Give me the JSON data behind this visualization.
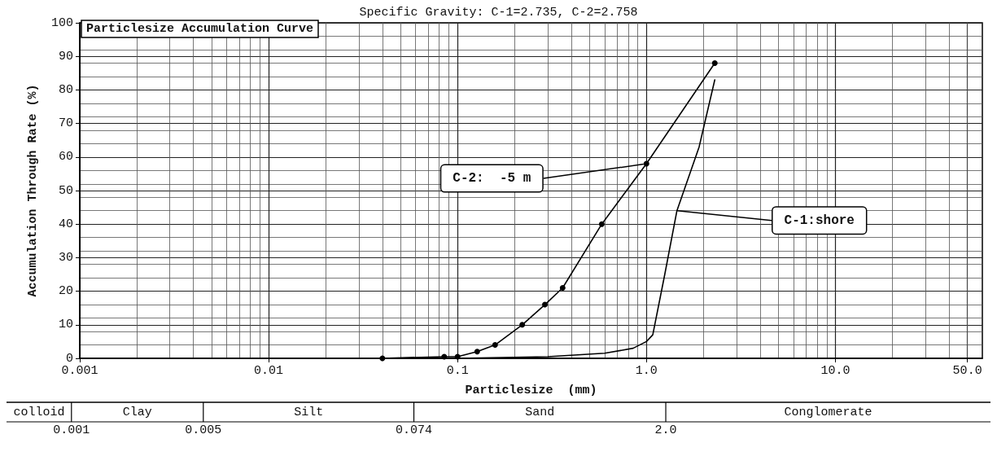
{
  "chart_data": {
    "type": "line",
    "title": "Particlesize Accumulation Curve",
    "subtitle": "Specific Gravity: C-1=2.735, C-2=2.758",
    "xlabel": "Particlesize  (mm)",
    "ylabel": "Accumulation Through Rate (%)",
    "log": "x",
    "xlim": [
      0.001,
      60
    ],
    "xticks": [
      {
        "value": 0.001,
        "label": "0.001"
      },
      {
        "value": 0.01,
        "label": "0.01"
      },
      {
        "value": 0.1,
        "label": "0.1"
      },
      {
        "value": 1,
        "label": "1.0"
      },
      {
        "value": 10,
        "label": "10.0"
      },
      {
        "value": 50,
        "label": "50.0"
      }
    ],
    "ylim": [
      0,
      100
    ],
    "yticks": [
      0,
      10,
      20,
      30,
      40,
      50,
      60,
      70,
      80,
      90,
      100
    ],
    "grid": true,
    "legend": false,
    "line_style": "solid",
    "series": [
      {
        "name": "C-2:  -5 m",
        "color": "#000000",
        "marker": "circle",
        "x": [
          0.04,
          0.085,
          0.1,
          0.127,
          0.158,
          0.22,
          0.29,
          0.36,
          0.58,
          1.0,
          2.3
        ],
        "values": [
          0,
          0.5,
          0.5,
          2,
          4,
          10,
          16,
          21,
          40,
          58,
          88
        ]
      },
      {
        "name": "C-1:shore",
        "color": "#000000",
        "marker": "none",
        "x": [
          0.1,
          0.3,
          0.6,
          0.85,
          1.0,
          1.08,
          1.25,
          1.45,
          1.9,
          2.3
        ],
        "values": [
          0,
          0.5,
          1.5,
          3,
          5,
          7,
          25,
          44,
          63,
          83
        ]
      }
    ],
    "annotations": [
      "colloid",
      "Clay",
      "Silt",
      "Sand",
      "Conglomerate",
      "0.001",
      "0.005",
      "0.074",
      "2.0"
    ]
  }
}
